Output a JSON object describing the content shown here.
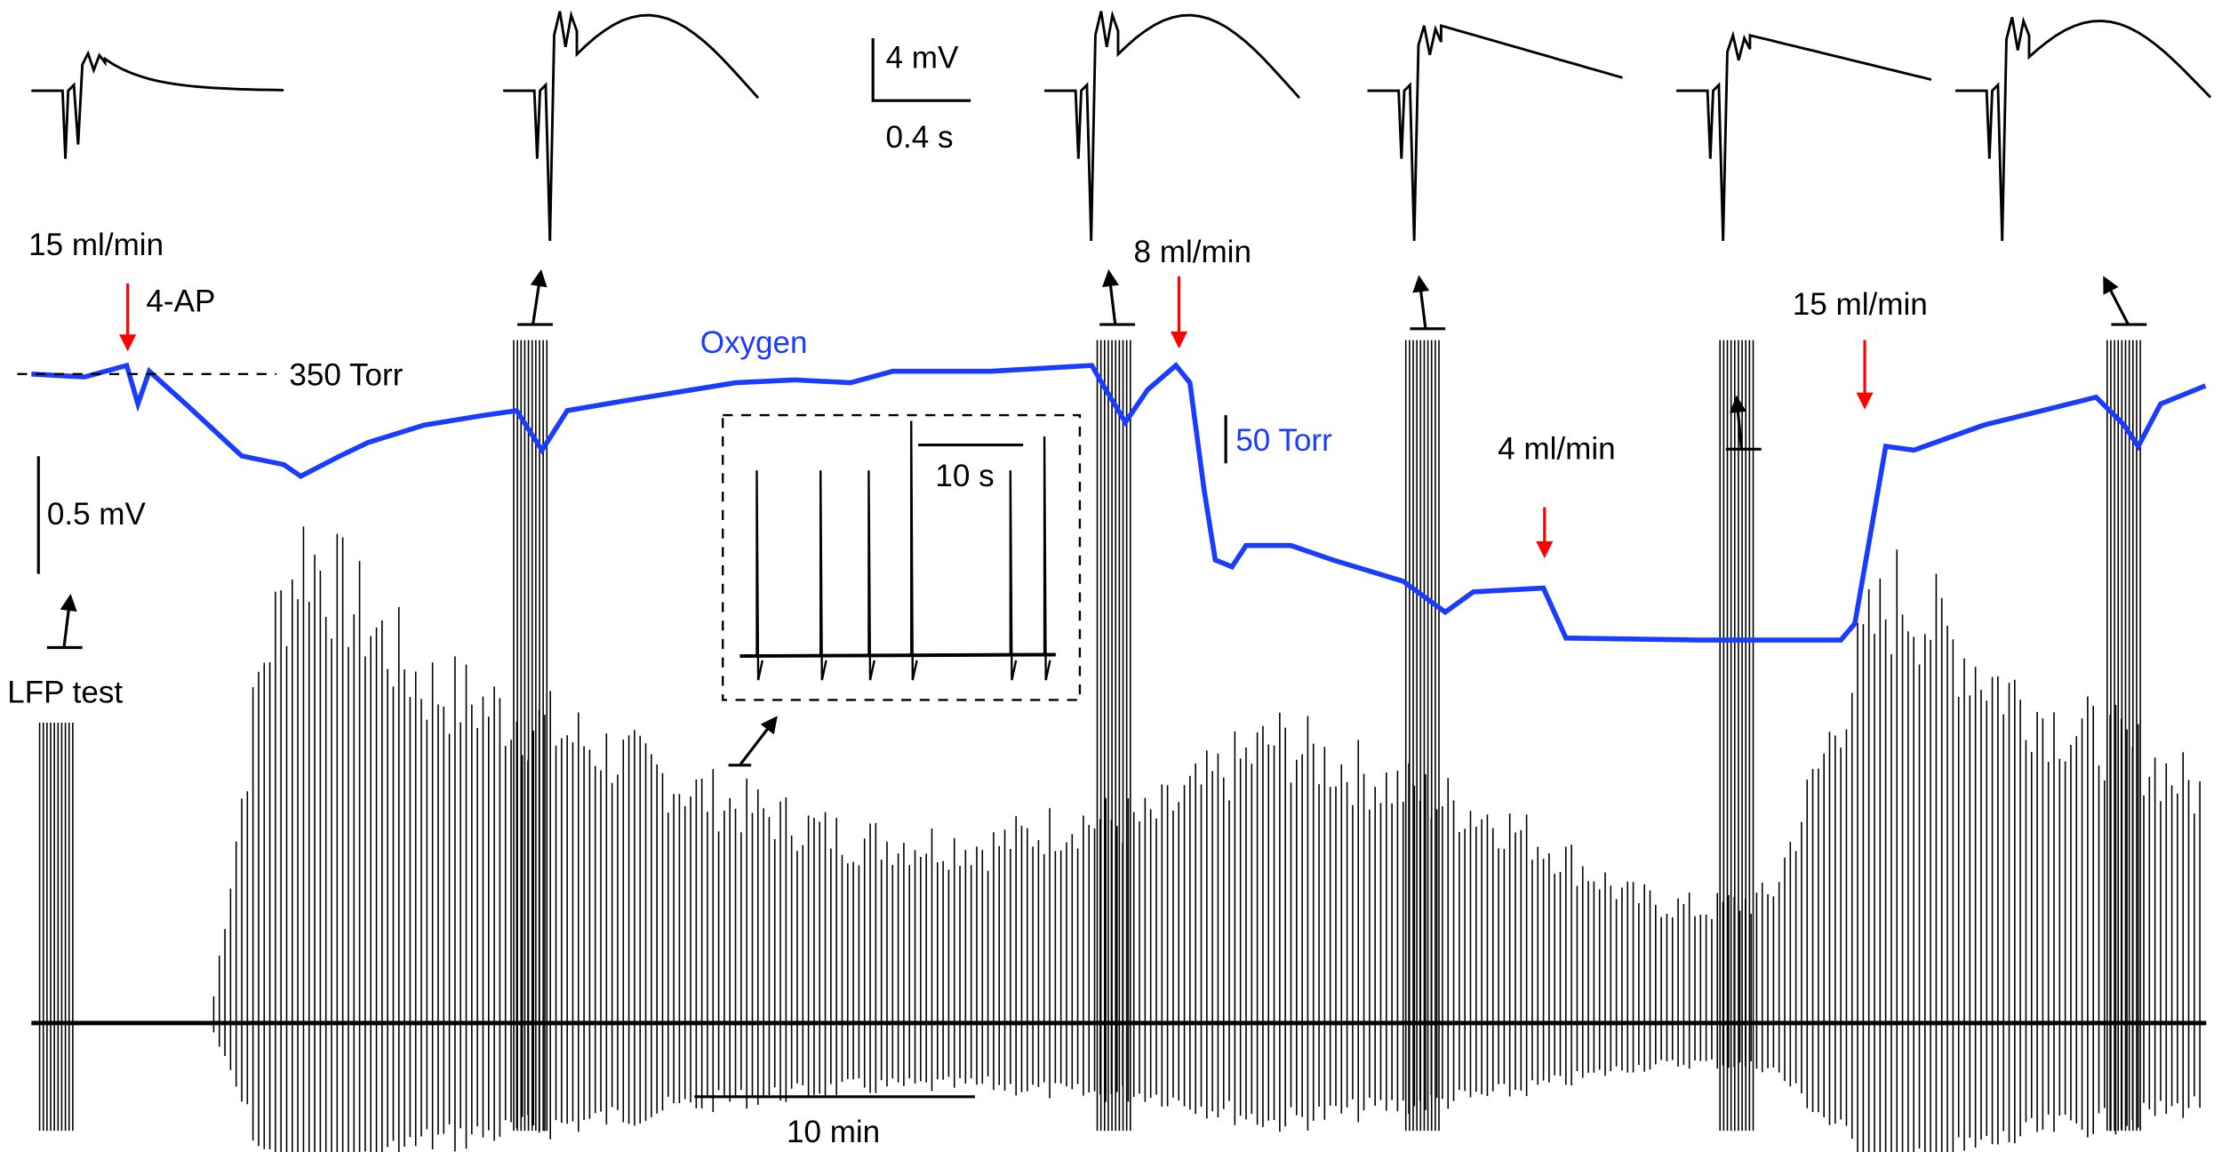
{
  "chart_data": {
    "type": "line",
    "title": "",
    "colors": {
      "oxygen": "#1a3cff",
      "lfp": "#000000",
      "marker": "#ff0000"
    },
    "oxygen": {
      "name": "Oxygen",
      "unit": "Torr",
      "reference_label": "350 Torr",
      "reference_value": 350,
      "scale_bar_label": "50 Torr",
      "scale_bar_value": 50,
      "t_min": [
        0,
        1.9,
        3.4,
        3.8,
        4.2,
        5.5,
        7.5,
        9.0,
        9.6,
        11.0,
        12.0,
        14.0,
        16.1,
        17.3,
        18.2,
        19.1,
        21.1,
        25.1,
        27.2,
        29.2,
        30.7,
        34.2,
        37.8,
        38.3,
        39.0,
        39.8,
        40.8,
        41.3,
        41.8,
        42.2,
        42.8,
        43.3,
        44.9,
        46.4,
        48.9,
        50.4,
        51.4,
        53.9,
        54.7,
        59.5,
        64.5,
        65.0,
        66.1,
        67.1,
        69.6,
        73.6,
        74.6,
        75.1,
        75.9,
        77.5
      ],
      "torr": [
        350,
        347,
        359,
        319,
        353,
        319,
        265,
        256,
        244,
        265,
        279,
        297,
        307,
        312,
        271,
        312,
        322,
        341,
        344,
        341,
        353,
        353,
        359,
        334,
        300,
        334,
        359,
        341,
        231,
        157,
        150,
        172,
        172,
        157,
        135,
        103,
        124,
        128,
        76,
        74,
        74,
        91,
        275,
        271,
        297,
        326,
        297,
        275,
        319,
        338
      ]
    },
    "lfp": {
      "unit": "mV",
      "scale_bar_label": "0.5 mV",
      "scale_bar_value": 0.5,
      "envelope_t_min": [
        6.5,
        8.2,
        9.7,
        12.0,
        14.0,
        19.1,
        24.1,
        29.2,
        34.2,
        37.3,
        39.8,
        44.3,
        48.4,
        51.9,
        54.4,
        57.0,
        59.5,
        62.0,
        65.5,
        66.6,
        69.6,
        72.1,
        74.6,
        77.5
      ],
      "envelope_peak_mv": [
        0.13,
        1.76,
        2.3,
        1.94,
        1.64,
        1.4,
        1.1,
        0.89,
        0.86,
        0.98,
        0.98,
        1.37,
        1.16,
        1.01,
        0.83,
        0.61,
        0.55,
        0.61,
        1.88,
        2.09,
        1.7,
        1.46,
        1.34,
        1.1
      ],
      "lfp_test_bursts_t_min": [
        0.9,
        17.8,
        38.6,
        49.6,
        60.8,
        74.6
      ]
    },
    "time_scale_bar_label": "10 min",
    "annotations": {
      "flow_start": "15 ml/min",
      "drug": "4-AP",
      "flow_8": "8 ml/min",
      "flow_4": "4 ml/min",
      "flow_15": "15 ml/min",
      "lfp_test": "LFP test"
    },
    "insets": {
      "evoked_scale_v": "4 mV",
      "evoked_scale_t": "0.4 s",
      "evoked_peak_mv": [
        3.1,
        6.6,
        6.6,
        5.4,
        4.6,
        6.1
      ],
      "zoom_scale_t": "10 s"
    }
  }
}
